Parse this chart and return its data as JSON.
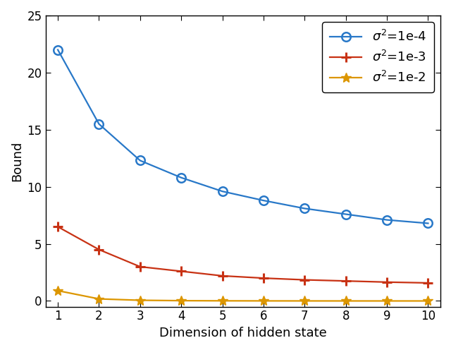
{
  "x": [
    1,
    2,
    3,
    4,
    5,
    6,
    7,
    8,
    9,
    10
  ],
  "series": [
    {
      "label": "$\\sigma^2$=1e-4",
      "color": "#2878c8",
      "marker": "o",
      "markersize": 9,
      "linewidth": 1.6,
      "sigma2": 0.0001,
      "y": [
        22.0,
        15.5,
        12.3,
        10.8,
        9.6,
        8.8,
        8.1,
        7.6,
        7.1,
        6.8
      ]
    },
    {
      "label": "$\\sigma^2$=1e-3",
      "color": "#c83214",
      "marker": "+",
      "markersize": 10,
      "markeredgewidth": 2.2,
      "linewidth": 1.6,
      "sigma2": 0.001,
      "y": [
        6.5,
        4.5,
        3.0,
        2.6,
        2.2,
        2.0,
        1.85,
        1.75,
        1.65,
        1.58
      ]
    },
    {
      "label": "$\\sigma^2$=1e-2",
      "color": "#dc9600",
      "marker": "*",
      "markersize": 10,
      "linewidth": 1.6,
      "sigma2": 0.01,
      "y": [
        0.9,
        0.18,
        0.06,
        0.025,
        0.012,
        0.006,
        0.003,
        0.001,
        0.0005,
        0.0002
      ]
    }
  ],
  "xlabel": "Dimension of hidden state",
  "ylabel": "Bound",
  "ylim": [
    -0.5,
    25
  ],
  "yticks": [
    0,
    5,
    10,
    15,
    20,
    25
  ],
  "xlim": [
    0.7,
    10.3
  ],
  "xticks": [
    1,
    2,
    3,
    4,
    5,
    6,
    7,
    8,
    9,
    10
  ],
  "legend_loc": "upper right",
  "figsize": [
    6.4,
    4.96
  ],
  "dpi": 100,
  "legend_fontsize": 13,
  "axis_fontsize": 13,
  "tick_fontsize": 12
}
